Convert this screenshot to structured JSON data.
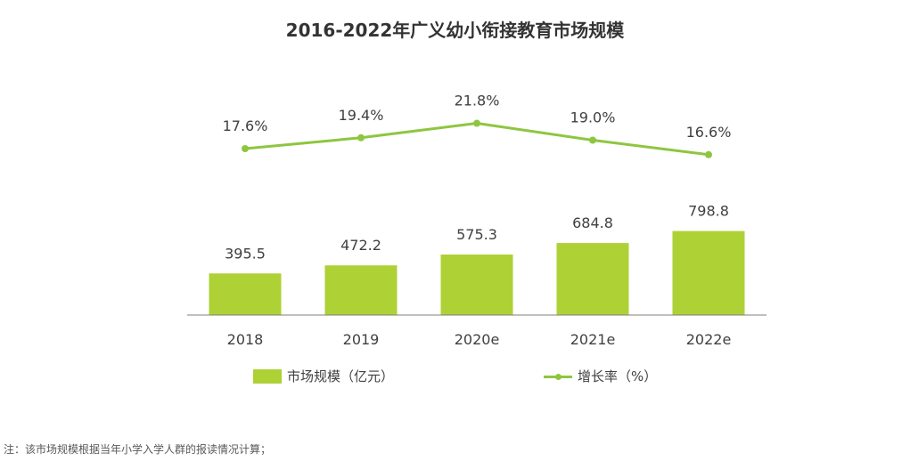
{
  "title": "2016-2022年广义幼小衔接教育市场规模",
  "colors": {
    "accent": "#aed135",
    "line": "#8ec63f",
    "axis": "#7f7f7f",
    "text": "#404040"
  },
  "legend": {
    "bar_label": "市场规模（亿元）",
    "line_label": "增长率（%）"
  },
  "note": "注：该市场规模根据当年小学入学人群的报读情况计算；",
  "chart_data": {
    "type": "bar",
    "categories": [
      "2018",
      "2019",
      "2020e",
      "2021e",
      "2022e"
    ],
    "series": [
      {
        "name": "市场规模（亿元）",
        "type": "bar",
        "values": [
          395.5,
          472.2,
          575.3,
          684.8,
          798.8
        ],
        "labels": [
          "395.5",
          "472.2",
          "575.3",
          "684.8",
          "798.8"
        ]
      },
      {
        "name": "增长率（%）",
        "type": "line",
        "values": [
          17.6,
          19.4,
          21.8,
          19.0,
          16.6
        ],
        "labels": [
          "17.6%",
          "19.4%",
          "21.8%",
          "19.0%",
          "16.6%"
        ]
      }
    ],
    "legend_position": "bottom",
    "grid": false
  }
}
